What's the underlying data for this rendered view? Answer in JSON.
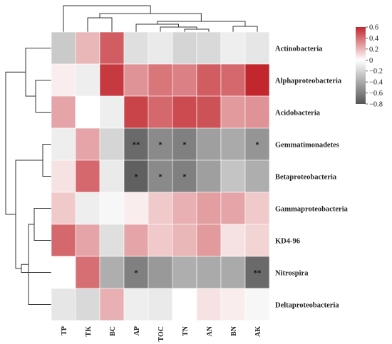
{
  "chart_data": {
    "type": "heatmap",
    "title": "",
    "xlabel": "",
    "ylabel": "",
    "columns": [
      "TP",
      "TK",
      "BC",
      "AP",
      "TOC",
      "TN",
      "AN",
      "BN",
      "AK"
    ],
    "rows": [
      "Actinobacteria",
      "Alphaproteobacteria",
      "Acidobacteria",
      "Gemmatimonadetes",
      "Betaproteobacteria",
      "Gammaproteobacteria",
      "KD4-96",
      "Nitrospira",
      "Deltaproteobacteria"
    ],
    "values": [
      [
        -0.25,
        0.2,
        0.45,
        -0.15,
        -0.1,
        -0.2,
        -0.18,
        -0.08,
        -0.12
      ],
      [
        0.05,
        -0.08,
        0.55,
        0.3,
        0.38,
        0.35,
        0.45,
        0.42,
        0.6
      ],
      [
        0.25,
        0.0,
        -0.08,
        0.52,
        0.42,
        0.5,
        0.48,
        0.28,
        0.3
      ],
      [
        -0.08,
        0.25,
        -0.2,
        -0.7,
        -0.55,
        -0.6,
        -0.45,
        -0.4,
        -0.5
      ],
      [
        0.08,
        0.42,
        -0.1,
        -0.75,
        -0.55,
        -0.6,
        -0.45,
        -0.28,
        -0.38
      ],
      [
        0.15,
        -0.08,
        -0.04,
        0.05,
        0.15,
        0.22,
        0.27,
        0.25,
        0.15
      ],
      [
        0.42,
        0.25,
        -0.15,
        0.25,
        0.15,
        0.2,
        0.28,
        0.08,
        0.12
      ],
      [
        0.0,
        0.4,
        -0.38,
        -0.6,
        -0.48,
        -0.38,
        -0.4,
        -0.4,
        -0.7
      ],
      [
        -0.12,
        -0.18,
        0.22,
        -0.08,
        -0.1,
        0.0,
        0.08,
        0.05,
        -0.04
      ]
    ],
    "significance": [
      [
        "",
        "",
        "",
        "",
        "",
        "",
        "",
        "",
        ""
      ],
      [
        "",
        "",
        "",
        "",
        "",
        "",
        "",
        "",
        ""
      ],
      [
        "",
        "",
        "",
        "",
        "",
        "",
        "",
        "",
        ""
      ],
      [
        "",
        "",
        "",
        "**",
        "*",
        "*",
        "",
        "",
        "*"
      ],
      [
        "",
        "",
        "",
        "*",
        "*",
        "*",
        "",
        "",
        ""
      ],
      [
        "",
        "",
        "",
        "",
        "",
        "",
        "",
        "",
        ""
      ],
      [
        "",
        "",
        "",
        "",
        "",
        "",
        "",
        "",
        ""
      ],
      [
        "",
        "",
        "",
        "*",
        "",
        "",
        "",
        "",
        "**"
      ],
      [
        "",
        "",
        "",
        "",
        "",
        "",
        "",
        "",
        ""
      ]
    ],
    "color_scale": {
      "min": -0.8,
      "max": 0.6,
      "ticks": [
        "0.6",
        "0.4",
        "0.2",
        "0",
        "−0.2",
        "−0.4",
        "−0.6",
        "−0.8"
      ],
      "tick_values": [
        0.6,
        0.4,
        0.2,
        0,
        -0.2,
        -0.4,
        -0.6,
        -0.8
      ],
      "colors": {
        "negative": "#555555",
        "zero": "#ffffff",
        "positive": "#c1272d"
      }
    },
    "legend": "top-right",
    "grid": false
  }
}
